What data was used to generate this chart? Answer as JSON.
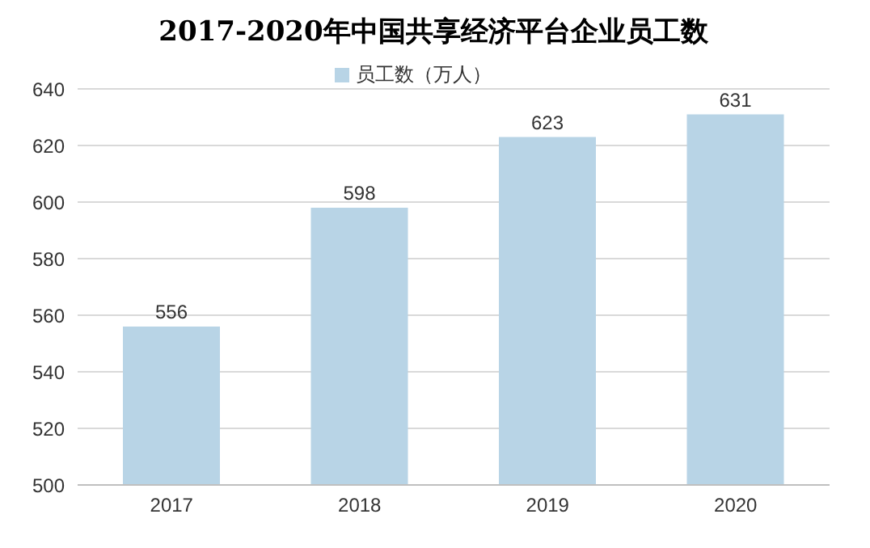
{
  "chart_data": {
    "type": "bar",
    "title": "2017-2020年中国共享经济平台企业员工数",
    "categories": [
      "2017",
      "2018",
      "2019",
      "2020"
    ],
    "series": [
      {
        "name": "员工数（万人）",
        "color": "#b8d4e6",
        "values": [
          556,
          598,
          623,
          631
        ]
      }
    ],
    "ylim": [
      500,
      640
    ],
    "yticks": [
      500,
      520,
      540,
      560,
      580,
      600,
      620,
      640
    ],
    "grid": "y",
    "legend": "top",
    "data_labels": true
  }
}
